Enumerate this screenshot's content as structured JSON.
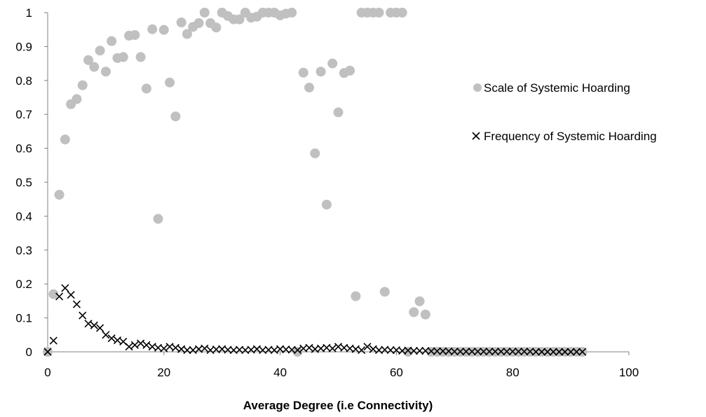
{
  "chart_data": {
    "type": "scatter",
    "title": "",
    "xlabel": "Average Degree (i.e Connectivity)",
    "ylabel": "",
    "xlim": [
      0,
      100
    ],
    "ylim": [
      0,
      1
    ],
    "x_ticks": [
      "0",
      "20",
      "40",
      "60",
      "80",
      "100"
    ],
    "y_ticks": [
      "0",
      "0.1",
      "0.2",
      "0.3",
      "0.4",
      "0.5",
      "0.6",
      "0.7",
      "0.8",
      "0.9",
      "1"
    ],
    "grid": false,
    "legend_position": "right",
    "series": [
      {
        "name": "Scale of Systemic Hoarding",
        "marker": "circle",
        "color": "#c0c0c0",
        "points": [
          [
            0,
            0
          ],
          [
            1,
            0.17
          ],
          [
            2,
            0.463
          ],
          [
            3,
            0.626
          ],
          [
            4,
            0.73
          ],
          [
            5,
            0.745
          ],
          [
            6,
            0.786
          ],
          [
            7,
            0.86
          ],
          [
            8,
            0.84
          ],
          [
            9,
            0.888
          ],
          [
            10,
            0.826
          ],
          [
            11,
            0.916
          ],
          [
            12,
            0.866
          ],
          [
            13,
            0.869
          ],
          [
            14,
            0.932
          ],
          [
            15,
            0.934
          ],
          [
            16,
            0.869
          ],
          [
            17,
            0.776
          ],
          [
            18,
            0.951
          ],
          [
            19,
            0.392
          ],
          [
            20,
            0.949
          ],
          [
            21,
            0.794
          ],
          [
            22,
            0.694
          ],
          [
            23,
            0.971
          ],
          [
            24,
            0.937
          ],
          [
            25,
            0.958
          ],
          [
            26,
            0.969
          ],
          [
            27,
            1.0
          ],
          [
            28,
            0.969
          ],
          [
            29,
            0.956
          ],
          [
            30,
            1.0
          ],
          [
            31,
            0.99
          ],
          [
            32,
            0.98
          ],
          [
            33,
            0.98
          ],
          [
            34,
            1.0
          ],
          [
            35,
            0.985
          ],
          [
            36,
            0.988
          ],
          [
            37,
            1.0
          ],
          [
            38,
            1.0
          ],
          [
            39,
            1.0
          ],
          [
            40,
            0.992
          ],
          [
            41,
            0.997
          ],
          [
            42,
            1.0
          ],
          [
            43,
            0.0
          ],
          [
            44,
            0.823
          ],
          [
            45,
            0.779
          ],
          [
            46,
            0.585
          ],
          [
            47,
            0.826
          ],
          [
            48,
            0.434
          ],
          [
            49,
            0.85
          ],
          [
            50,
            0.706
          ],
          [
            51,
            0.822
          ],
          [
            52,
            0.829
          ],
          [
            53,
            0.164
          ],
          [
            54,
            1.0
          ],
          [
            55,
            1.0
          ],
          [
            56,
            1.0
          ],
          [
            57,
            1.0
          ],
          [
            58,
            0.177
          ],
          [
            59,
            1.0
          ],
          [
            60,
            1.0
          ],
          [
            61,
            1.0
          ],
          [
            62,
            0.0
          ],
          [
            63,
            0.117
          ],
          [
            64,
            0.149
          ],
          [
            65,
            0.11
          ],
          [
            66,
            0
          ],
          [
            67,
            0
          ],
          [
            68,
            0
          ],
          [
            69,
            0
          ],
          [
            70,
            0
          ],
          [
            71,
            0
          ],
          [
            72,
            0
          ],
          [
            73,
            0
          ],
          [
            74,
            0
          ],
          [
            75,
            0
          ],
          [
            76,
            0
          ],
          [
            77,
            0
          ],
          [
            78,
            0
          ],
          [
            79,
            0
          ],
          [
            80,
            0
          ],
          [
            81,
            0
          ],
          [
            82,
            0
          ],
          [
            83,
            0
          ],
          [
            84,
            0
          ],
          [
            85,
            0
          ],
          [
            86,
            0
          ],
          [
            87,
            0
          ],
          [
            88,
            0
          ],
          [
            89,
            0
          ],
          [
            90,
            0
          ],
          [
            91,
            0
          ],
          [
            92,
            0
          ]
        ]
      },
      {
        "name": "Frequency of Systemic Hoarding",
        "marker": "x",
        "color": "#000000",
        "points": [
          [
            0,
            0
          ],
          [
            1,
            0.033
          ],
          [
            2,
            0.163
          ],
          [
            3,
            0.188
          ],
          [
            4,
            0.168
          ],
          [
            5,
            0.14
          ],
          [
            6,
            0.107
          ],
          [
            7,
            0.083
          ],
          [
            8,
            0.078
          ],
          [
            9,
            0.07
          ],
          [
            10,
            0.05
          ],
          [
            11,
            0.04
          ],
          [
            12,
            0.034
          ],
          [
            13,
            0.03
          ],
          [
            14,
            0.015
          ],
          [
            15,
            0.02
          ],
          [
            16,
            0.025
          ],
          [
            17,
            0.02
          ],
          [
            18,
            0.015
          ],
          [
            19,
            0.012
          ],
          [
            20,
            0.01
          ],
          [
            21,
            0.015
          ],
          [
            22,
            0.012
          ],
          [
            23,
            0.008
          ],
          [
            24,
            0.005
          ],
          [
            25,
            0.005
          ],
          [
            26,
            0.008
          ],
          [
            27,
            0.01
          ],
          [
            28,
            0.005
          ],
          [
            29,
            0.007
          ],
          [
            30,
            0.008
          ],
          [
            31,
            0.006
          ],
          [
            32,
            0.005
          ],
          [
            33,
            0.006
          ],
          [
            34,
            0.005
          ],
          [
            35,
            0.006
          ],
          [
            36,
            0.008
          ],
          [
            37,
            0.005
          ],
          [
            38,
            0.006
          ],
          [
            39,
            0.005
          ],
          [
            40,
            0.008
          ],
          [
            41,
            0.007
          ],
          [
            42,
            0.006
          ],
          [
            43,
            0.005
          ],
          [
            44,
            0.01
          ],
          [
            45,
            0.012
          ],
          [
            46,
            0.008
          ],
          [
            47,
            0.01
          ],
          [
            48,
            0.012
          ],
          [
            49,
            0.01
          ],
          [
            50,
            0.015
          ],
          [
            51,
            0.012
          ],
          [
            52,
            0.01
          ],
          [
            53,
            0.008
          ],
          [
            54,
            0.005
          ],
          [
            55,
            0.015
          ],
          [
            56,
            0.008
          ],
          [
            57,
            0.005
          ],
          [
            58,
            0.006
          ],
          [
            59,
            0.005
          ],
          [
            60,
            0.005
          ],
          [
            61,
            0.003
          ],
          [
            62,
            0.004
          ],
          [
            63,
            0.003
          ],
          [
            64,
            0.003
          ],
          [
            65,
            0.003
          ],
          [
            66,
            0.002
          ],
          [
            67,
            0.002
          ],
          [
            68,
            0.002
          ],
          [
            69,
            0.002
          ],
          [
            70,
            0.001
          ],
          [
            71,
            0.001
          ],
          [
            72,
            0.001
          ],
          [
            73,
            0.001
          ],
          [
            74,
            0.001
          ],
          [
            75,
            0.001
          ],
          [
            76,
            0.001
          ],
          [
            77,
            0.001
          ],
          [
            78,
            0.001
          ],
          [
            79,
            0.001
          ],
          [
            80,
            0.001
          ],
          [
            81,
            0.001
          ],
          [
            82,
            0.001
          ],
          [
            83,
            0.001
          ],
          [
            84,
            0
          ],
          [
            85,
            0
          ],
          [
            86,
            0
          ],
          [
            87,
            0
          ],
          [
            88,
            0
          ],
          [
            89,
            0
          ],
          [
            90,
            0
          ],
          [
            91,
            0
          ],
          [
            92,
            0
          ]
        ]
      }
    ]
  }
}
